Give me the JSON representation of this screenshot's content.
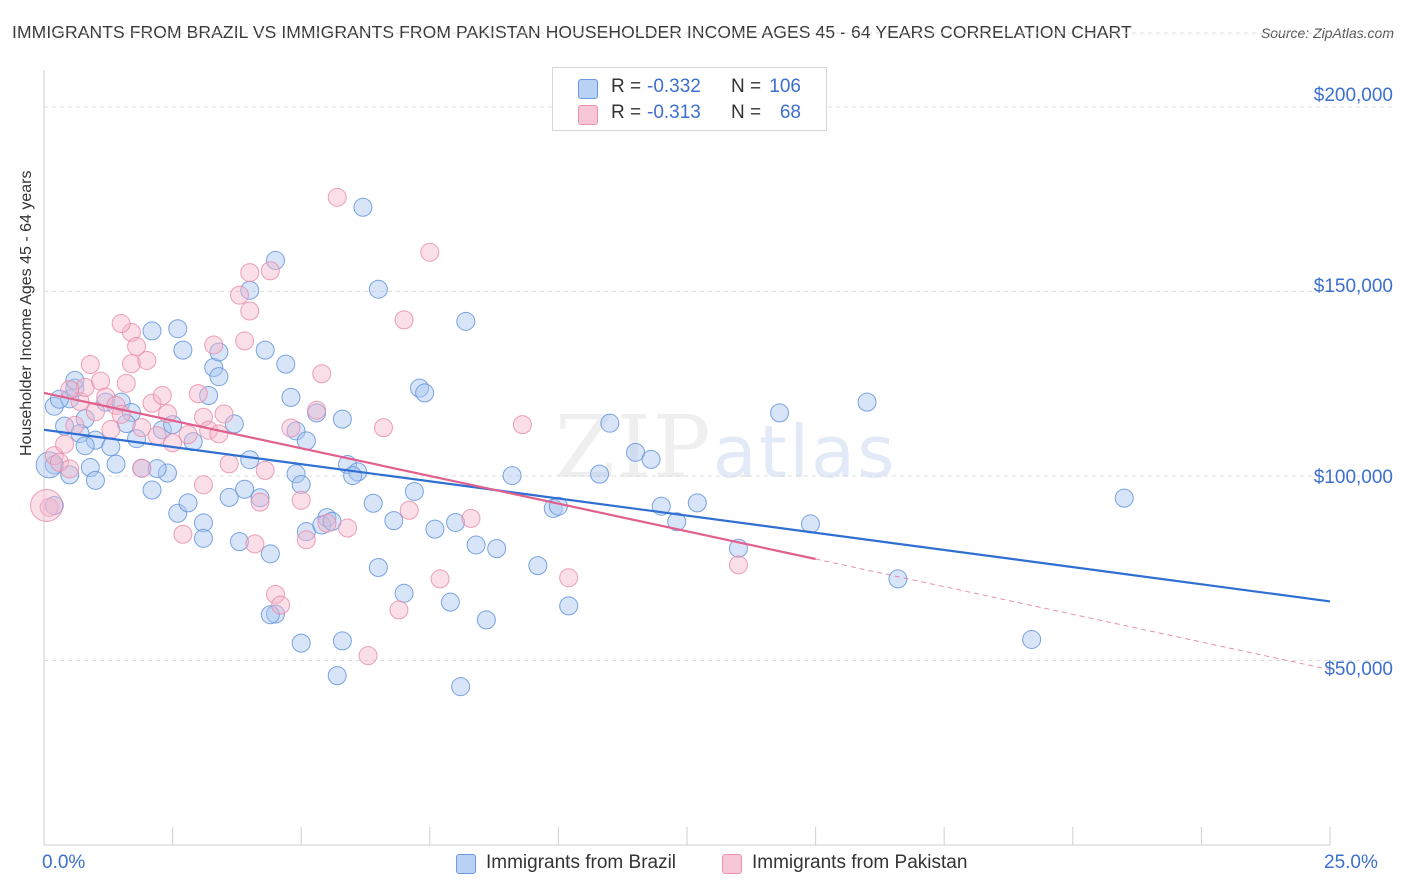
{
  "title": "IMMIGRANTS FROM BRAZIL VS IMMIGRANTS FROM PAKISTAN HOUSEHOLDER INCOME AGES 45 - 64 YEARS CORRELATION CHART",
  "source": "Source: ZipAtlas.com",
  "watermark": {
    "zip": "ZIP",
    "atlas": "atlas"
  },
  "colors": {
    "brazil_fill": "#a9c6f0",
    "brazil_stroke": "#5b8fd9",
    "brazil_line": "#2f6fd1",
    "pakistan_fill": "#f4b6cb",
    "pakistan_stroke": "#e889a8",
    "pakistan_line": "#e0608e",
    "accent_text": "#3d6fcf"
  },
  "legend": {
    "rows": [
      {
        "r_label": "R =",
        "r_value": "-0.332",
        "n_label": "N =",
        "n_value": "106"
      },
      {
        "r_label": "R =",
        "r_value": "-0.313",
        "n_label": "N =",
        "n_value": "68"
      }
    ]
  },
  "bottom_legend": {
    "brazil": "Immigrants from Brazil",
    "pakistan": "Immigrants from Pakistan"
  },
  "chart_data": {
    "type": "scatter",
    "title": "IMMIGRANTS FROM BRAZIL VS IMMIGRANTS FROM PAKISTAN HOUSEHOLDER INCOME AGES 45 - 64 YEARS CORRELATION CHART",
    "xlabel": "",
    "ylabel": "Householder Income Ages 45 - 64 years",
    "xlim": [
      0,
      25
    ],
    "ylim": [
      0,
      210000
    ],
    "x_tick_labels": [
      "0.0%",
      "25.0%"
    ],
    "y_ticks": [
      50000,
      100000,
      150000,
      200000
    ],
    "y_tick_labels": [
      "$50,000",
      "$100,000",
      "$150,000",
      "$200,000"
    ],
    "grid": true,
    "legend_position": "top-center",
    "series": [
      {
        "name": "Immigrants from Brazil",
        "R": -0.332,
        "N": 106,
        "trend": {
          "x": [
            0,
            25
          ],
          "y": [
            112500,
            66000
          ]
        },
        "points": [
          [
            0.2,
            118900
          ],
          [
            0.4,
            113500
          ],
          [
            0.5,
            120900
          ],
          [
            0.6,
            123800
          ],
          [
            0.8,
            115500
          ],
          [
            1.2,
            120000
          ],
          [
            0.2,
            103000
          ],
          [
            0.9,
            102300
          ],
          [
            1.0,
            109700
          ],
          [
            1.5,
            120000
          ],
          [
            1.7,
            117200
          ],
          [
            1.8,
            110100
          ],
          [
            1.6,
            114200
          ],
          [
            2.1,
            139300
          ],
          [
            1.9,
            102100
          ],
          [
            2.3,
            112500
          ],
          [
            2.5,
            113900
          ],
          [
            2.6,
            139900
          ],
          [
            2.4,
            100800
          ],
          [
            2.1,
            96200
          ],
          [
            2.7,
            134100
          ],
          [
            2.9,
            109300
          ],
          [
            2.6,
            89900
          ],
          [
            2.8,
            92700
          ],
          [
            3.3,
            129400
          ],
          [
            3.4,
            126900
          ],
          [
            3.4,
            133600
          ],
          [
            3.1,
            87300
          ],
          [
            3.1,
            83100
          ],
          [
            3.6,
            94200
          ],
          [
            3.7,
            114100
          ],
          [
            3.8,
            82200
          ],
          [
            3.9,
            96400
          ],
          [
            4.0,
            150300
          ],
          [
            4.0,
            104400
          ],
          [
            4.3,
            134100
          ],
          [
            4.4,
            78900
          ],
          [
            4.2,
            94100
          ],
          [
            4.5,
            158400
          ],
          [
            4.5,
            62600
          ],
          [
            4.4,
            62400
          ],
          [
            4.7,
            130300
          ],
          [
            4.8,
            121300
          ],
          [
            4.9,
            112200
          ],
          [
            4.9,
            100600
          ],
          [
            5.0,
            97700
          ],
          [
            5.1,
            109500
          ],
          [
            5.1,
            84900
          ],
          [
            5.0,
            54700
          ],
          [
            5.3,
            117100
          ],
          [
            5.5,
            88700
          ],
          [
            5.4,
            86700
          ],
          [
            5.6,
            87700
          ],
          [
            5.8,
            115400
          ],
          [
            5.8,
            55300
          ],
          [
            5.7,
            45900
          ],
          [
            5.9,
            103100
          ],
          [
            6.1,
            101100
          ],
          [
            6.2,
            172800
          ],
          [
            6.0,
            100100
          ],
          [
            6.4,
            92600
          ],
          [
            6.5,
            75200
          ],
          [
            6.5,
            150600
          ],
          [
            6.8,
            87900
          ],
          [
            7.0,
            68200
          ],
          [
            7.2,
            95800
          ],
          [
            7.3,
            123800
          ],
          [
            7.4,
            122500
          ],
          [
            7.6,
            85600
          ],
          [
            7.9,
            65800
          ],
          [
            8.0,
            87400
          ],
          [
            8.1,
            42900
          ],
          [
            8.2,
            141900
          ],
          [
            8.4,
            81300
          ],
          [
            8.6,
            61000
          ],
          [
            8.8,
            80300
          ],
          [
            9.1,
            100100
          ],
          [
            9.6,
            75700
          ],
          [
            9.9,
            91200
          ],
          [
            10.0,
            91800
          ],
          [
            10.2,
            64800
          ],
          [
            10.8,
            100500
          ],
          [
            11.0,
            114300
          ],
          [
            11.5,
            106400
          ],
          [
            11.8,
            104500
          ],
          [
            12.0,
            91800
          ],
          [
            12.3,
            87600
          ],
          [
            12.7,
            92700
          ],
          [
            13.5,
            80400
          ],
          [
            14.3,
            117100
          ],
          [
            14.9,
            87000
          ],
          [
            16.0,
            120000
          ],
          [
            16.6,
            72100
          ],
          [
            19.2,
            55700
          ],
          [
            21.0,
            94000
          ],
          [
            0.2,
            92000
          ],
          [
            0.3,
            120800
          ],
          [
            0.5,
            100300
          ],
          [
            0.6,
            125900
          ],
          [
            0.7,
            111500
          ],
          [
            0.8,
            108200
          ],
          [
            1.0,
            98800
          ],
          [
            1.3,
            107900
          ],
          [
            1.4,
            103200
          ],
          [
            3.2,
            121800
          ],
          [
            2.2,
            102000
          ]
        ]
      },
      {
        "name": "Immigrants from Pakistan",
        "R": -0.313,
        "N": 68,
        "trend": {
          "x": [
            0,
            15
          ],
          "y": [
            122500,
            77500
          ]
        },
        "trend_extension": {
          "x": [
            15,
            25
          ],
          "y": [
            77500,
            47500
          ]
        },
        "points": [
          [
            0.1,
            91500
          ],
          [
            0.2,
            105500
          ],
          [
            0.3,
            103700
          ],
          [
            0.4,
            108600
          ],
          [
            0.5,
            101900
          ],
          [
            0.6,
            113700
          ],
          [
            0.7,
            120200
          ],
          [
            0.8,
            124000
          ],
          [
            0.9,
            130200
          ],
          [
            1.0,
            117400
          ],
          [
            1.1,
            125700
          ],
          [
            1.2,
            121400
          ],
          [
            1.3,
            112600
          ],
          [
            1.4,
            119100
          ],
          [
            1.5,
            116700
          ],
          [
            1.6,
            125100
          ],
          [
            1.7,
            138900
          ],
          [
            1.7,
            130400
          ],
          [
            1.8,
            135100
          ],
          [
            1.9,
            113100
          ],
          [
            1.9,
            102100
          ],
          [
            2.0,
            131300
          ],
          [
            2.1,
            119700
          ],
          [
            2.2,
            110900
          ],
          [
            2.3,
            121800
          ],
          [
            2.4,
            116900
          ],
          [
            2.5,
            109000
          ],
          [
            2.7,
            84200
          ],
          [
            2.8,
            111200
          ],
          [
            3.0,
            122300
          ],
          [
            3.1,
            115900
          ],
          [
            3.1,
            97600
          ],
          [
            3.2,
            112400
          ],
          [
            3.3,
            135500
          ],
          [
            3.4,
            111400
          ],
          [
            3.5,
            116800
          ],
          [
            3.6,
            103300
          ],
          [
            3.8,
            149000
          ],
          [
            3.9,
            136600
          ],
          [
            4.0,
            155100
          ],
          [
            4.0,
            144700
          ],
          [
            4.1,
            81600
          ],
          [
            4.2,
            92900
          ],
          [
            4.3,
            101500
          ],
          [
            4.4,
            155600
          ],
          [
            4.5,
            67900
          ],
          [
            4.6,
            65000
          ],
          [
            4.8,
            113000
          ],
          [
            5.0,
            93400
          ],
          [
            5.1,
            82700
          ],
          [
            5.3,
            117800
          ],
          [
            5.4,
            127700
          ],
          [
            5.5,
            87200
          ],
          [
            5.7,
            175500
          ],
          [
            5.9,
            85900
          ],
          [
            6.3,
            51300
          ],
          [
            6.6,
            113100
          ],
          [
            6.9,
            63700
          ],
          [
            7.0,
            142300
          ],
          [
            7.1,
            90700
          ],
          [
            7.5,
            160600
          ],
          [
            7.7,
            72100
          ],
          [
            8.3,
            88500
          ],
          [
            9.3,
            113900
          ],
          [
            10.2,
            72400
          ],
          [
            13.5,
            75900
          ],
          [
            0.5,
            123400
          ],
          [
            1.5,
            141300
          ]
        ]
      }
    ]
  }
}
